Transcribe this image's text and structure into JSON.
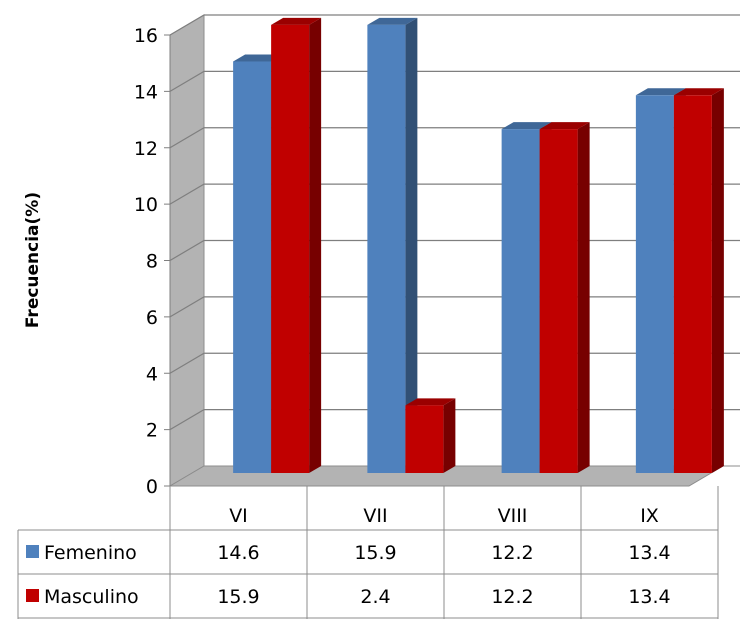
{
  "chart_data": {
    "type": "bar",
    "title": "",
    "xlabel": "",
    "ylabel": "Frecuencia(%)",
    "ylim": [
      0,
      16
    ],
    "yticks": [
      0,
      2,
      4,
      6,
      8,
      10,
      12,
      14,
      16
    ],
    "categories": [
      "VI",
      "VII",
      "VIII",
      "IX"
    ],
    "grid": true,
    "legend": "data-table-left",
    "series": [
      {
        "name": "Femenino",
        "values": [
          14.6,
          15.9,
          12.2,
          13.4
        ],
        "labels": [
          "14.6",
          "15.9",
          "12.2",
          "13.4"
        ],
        "color": "#4f81bd"
      },
      {
        "name": "Masculino",
        "values": [
          15.9,
          2.4,
          12.2,
          13.4
        ],
        "labels": [
          "15.9",
          "2.4",
          "12.2",
          "13.4"
        ],
        "color": "#c00000"
      }
    ]
  }
}
